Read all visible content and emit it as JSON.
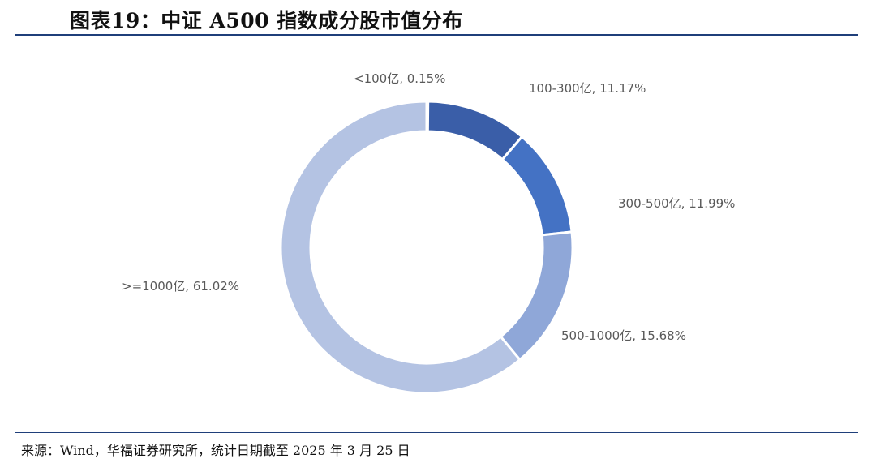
{
  "header": {
    "title": "图表19：中证 A500 指数成分股市值分布"
  },
  "footer": {
    "source": "来源：Wind，华福证券研究所，统计日期截至 2025 年 3 月 25 日"
  },
  "chart_data": {
    "type": "pie",
    "donut": true,
    "title": "中证 A500 指数成分股市值分布",
    "categories": [
      "<100亿",
      "100-300亿",
      "300-500亿",
      "500-1000亿",
      ">=1000亿"
    ],
    "values": [
      0.15,
      11.17,
      11.99,
      15.68,
      61.02
    ],
    "unit": "%",
    "labels": [
      "<100亿, 0.15%",
      "100-300亿, 11.17%",
      "300-500亿, 11.99%",
      "500-1000亿, 15.68%",
      ">=1000亿, 61.02%"
    ],
    "colors": [
      "#2a4f9c",
      "#3a5ea8",
      "#4472c4",
      "#8fa7d8",
      "#b4c3e3"
    ]
  }
}
